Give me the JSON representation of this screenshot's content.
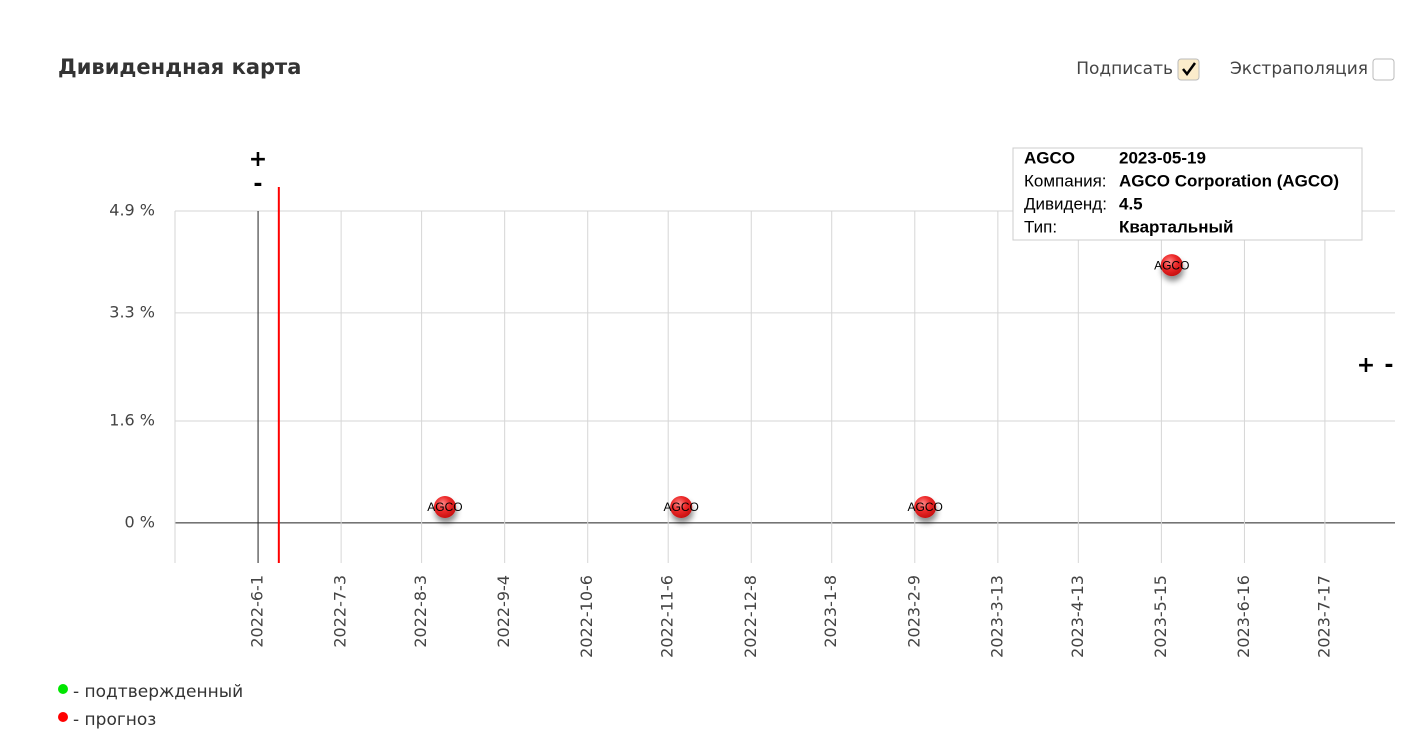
{
  "header": {
    "title": "Дивидендная карта"
  },
  "controls": [
    {
      "label": "Подписать",
      "checked": true
    },
    {
      "label": "Экстраполяция",
      "checked": false
    }
  ],
  "zoom": {
    "plus": "+",
    "minus": "-"
  },
  "chart_data": {
    "type": "scatter",
    "x": [
      "2022-08-12",
      "2022-11-11",
      "2023-02-13",
      "2023-05-19"
    ],
    "values": [
      0.25,
      0.25,
      0.25,
      4.05
    ],
    "point_labels": [
      "AGCO",
      "AGCO",
      "AGCO",
      "AGCO"
    ],
    "color": "#e8262a",
    "xlim": [
      "2022-04-30",
      "2023-08-13"
    ],
    "ylim": [
      -0.63,
      4.9
    ],
    "xticks": [
      {
        "value": "2022-06-01",
        "label": "2022-6-1"
      },
      {
        "value": "2022-07-03",
        "label": "2022-7-3"
      },
      {
        "value": "2022-08-03",
        "label": "2022-8-3"
      },
      {
        "value": "2022-09-04",
        "label": "2022-9-4"
      },
      {
        "value": "2022-10-06",
        "label": "2022-10-6"
      },
      {
        "value": "2022-11-06",
        "label": "2022-11-6"
      },
      {
        "value": "2022-12-08",
        "label": "2022-12-8"
      },
      {
        "value": "2023-01-08",
        "label": "2023-1-8"
      },
      {
        "value": "2023-02-09",
        "label": "2023-2-9"
      },
      {
        "value": "2023-03-13",
        "label": "2023-3-13"
      },
      {
        "value": "2023-04-13",
        "label": "2023-4-13"
      },
      {
        "value": "2023-05-15",
        "label": "2023-5-15"
      },
      {
        "value": "2023-06-16",
        "label": "2023-6-16"
      },
      {
        "value": "2023-07-17",
        "label": "2023-7-17"
      }
    ],
    "yticks": [
      {
        "value": 0,
        "label": "0 %"
      },
      {
        "value": 1.6,
        "label": "1.6 %"
      },
      {
        "value": 3.3,
        "label": "3.3 %"
      },
      {
        "value": 4.9,
        "label": "4.9 %"
      }
    ],
    "grid": true,
    "today": "2022-06-09",
    "today_color": "#ff0000",
    "legend": [
      {
        "name": "- подтвержденный",
        "color": "#00e600"
      },
      {
        "name": "- прогноз",
        "color": "#ff0000"
      }
    ],
    "tooltip": {
      "ticker": "AGCO",
      "date": "2023-05-19",
      "rows": [
        {
          "label": "Компания:",
          "value": "AGCO Corporation (AGCO)"
        },
        {
          "label": "Дивиденд:",
          "value": 4.5
        },
        {
          "label": "Тип:",
          "value": "Квартальный"
        }
      ]
    }
  }
}
